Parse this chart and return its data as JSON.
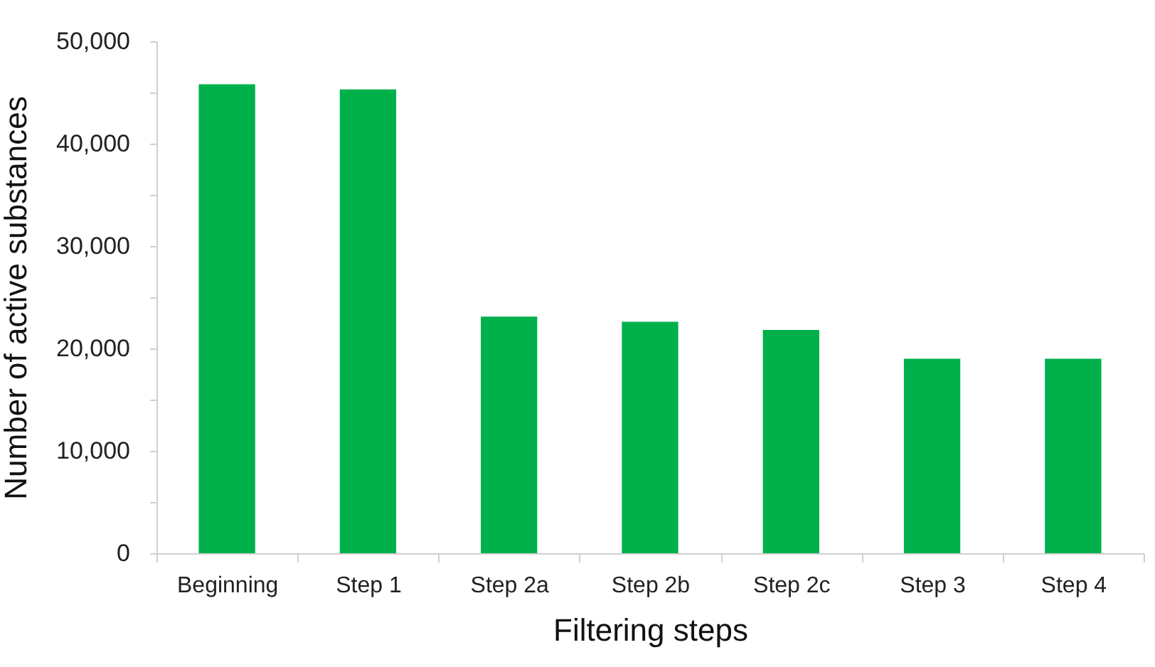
{
  "chart_data": {
    "type": "bar",
    "xlabel": "Filtering steps",
    "ylabel": "Number of active substances",
    "categories": [
      "Beginning",
      "Step 1",
      "Step 2a",
      "Step 2b",
      "Step 2c",
      "Step 3",
      "Step 4"
    ],
    "values": [
      45800,
      45300,
      23100,
      22600,
      21800,
      19000,
      19000
    ],
    "color": "#00b04b",
    "ylim": [
      0,
      50000
    ],
    "yticks": [
      0,
      {
        "value": 5000,
        "label": null
      },
      {
        "value": 10000,
        "label": "10,000"
      },
      {
        "value": 15000,
        "label": null
      },
      {
        "value": 20000,
        "label": "20,000"
      },
      {
        "value": 25000,
        "label": null
      },
      {
        "value": 30000,
        "label": "30,000"
      },
      {
        "value": 35000,
        "label": null
      },
      {
        "value": 40000,
        "label": "40,000"
      },
      {
        "value": 45000,
        "label": null
      },
      {
        "value": 50000,
        "label": "50,000"
      }
    ],
    "grid": false
  }
}
